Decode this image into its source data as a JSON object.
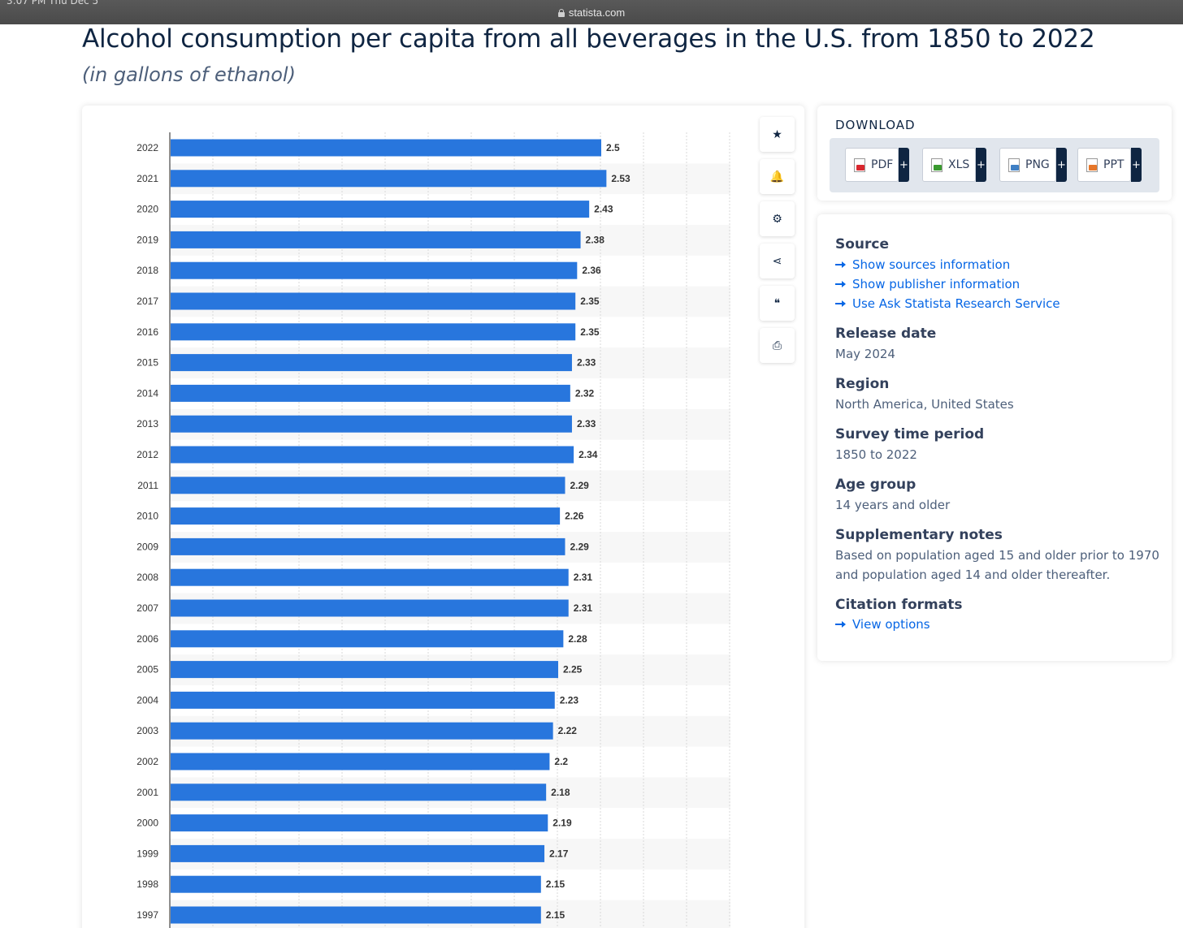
{
  "browser": {
    "status": "3:07 PM   Thu Dec 5",
    "url": "statista.com"
  },
  "header": {
    "title": "Alcohol consumption per capita from all beverages in the U.S. from 1850 to 2022",
    "subtitle": "(in gallons of ethanol)"
  },
  "chart_data": {
    "type": "bar",
    "orientation": "horizontal",
    "categories": [
      "2022",
      "2021",
      "2020",
      "2019",
      "2018",
      "2017",
      "2016",
      "2015",
      "2014",
      "2013",
      "2012",
      "2011",
      "2010",
      "2009",
      "2008",
      "2007",
      "2006",
      "2005",
      "2004",
      "2003",
      "2002",
      "2001",
      "2000",
      "1999",
      "1998",
      "1997"
    ],
    "values": [
      2.5,
      2.53,
      2.43,
      2.38,
      2.36,
      2.35,
      2.35,
      2.33,
      2.32,
      2.33,
      2.34,
      2.29,
      2.26,
      2.29,
      2.31,
      2.31,
      2.28,
      2.25,
      2.23,
      2.22,
      2.2,
      2.18,
      2.19,
      2.17,
      2.15,
      2.15
    ],
    "value_labels": [
      "2.5",
      "2.53",
      "2.43",
      "2.38",
      "2.36",
      "2.35",
      "2.35",
      "2.33",
      "2.32",
      "2.33",
      "2.34",
      "2.29",
      "2.26",
      "2.29",
      "2.31",
      "2.31",
      "2.28",
      "2.25",
      "2.23",
      "2.22",
      "2.2",
      "2.18",
      "2.19",
      "2.17",
      "2.15",
      "2.15"
    ],
    "xlim": [
      0,
      3.25
    ],
    "grid": true,
    "bar_color": "#2876dd"
  },
  "toolbar": {
    "items": [
      {
        "name": "favorite-star-icon",
        "glyph": "★"
      },
      {
        "name": "notification-bell-icon",
        "glyph": "🔔"
      },
      {
        "name": "settings-gear-icon",
        "glyph": "⚙"
      },
      {
        "name": "share-icon",
        "glyph": "⋖"
      },
      {
        "name": "cite-quote-icon",
        "glyph": "❝"
      },
      {
        "name": "print-icon",
        "glyph": "⎙"
      }
    ]
  },
  "download": {
    "title": "DOWNLOAD",
    "buttons": [
      {
        "label": "PDF",
        "color": "#d9272e"
      },
      {
        "label": "XLS",
        "color": "#3a9a2f"
      },
      {
        "label": "PNG",
        "color": "#3f7fc4"
      },
      {
        "label": "PPT",
        "color": "#e7772a"
      }
    ],
    "plus": "+"
  },
  "info": {
    "source_heading": "Source",
    "source_links": [
      "Show sources information",
      "Show publisher information",
      "Use Ask Statista Research Service"
    ],
    "release_heading": "Release date",
    "release_value": "May 2024",
    "region_heading": "Region",
    "region_value": "North America, United States",
    "survey_heading": "Survey time period",
    "survey_value": "1850 to 2022",
    "age_heading": "Age group",
    "age_value": "14 years and older",
    "notes_heading": "Supplementary notes",
    "notes_value": "Based on population aged 15 and older prior to 1970 and population aged 14 and older thereafter.",
    "citation_heading": "Citation formats",
    "citation_link": "View options"
  }
}
